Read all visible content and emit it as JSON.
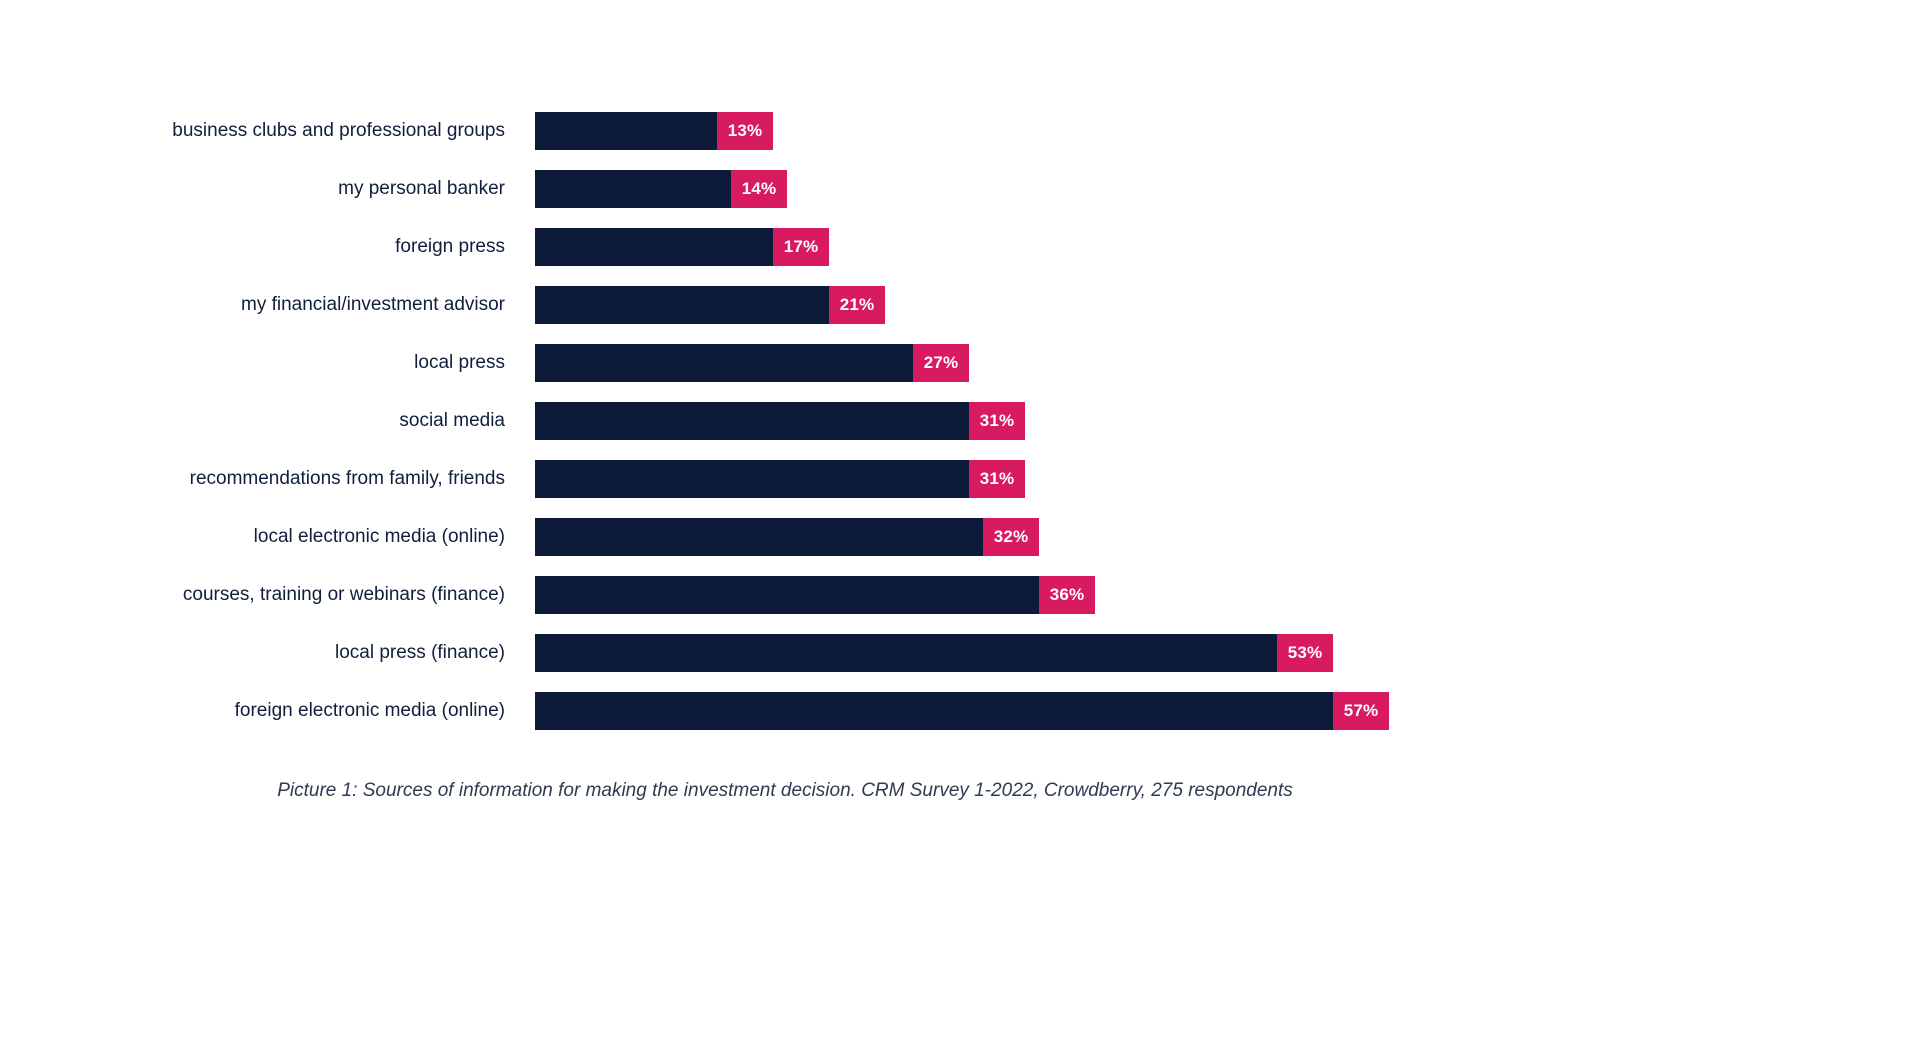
{
  "chart_data": {
    "type": "bar",
    "orientation": "horizontal",
    "title": "",
    "xlabel": "",
    "ylabel": "",
    "xlim": [
      0,
      60
    ],
    "grid": false,
    "legend": false,
    "value_suffix": "%",
    "bar_color": "#0d1a3a",
    "badge_color": "#d81b60",
    "label_color": "#101f3c",
    "categories": [
      "business clubs and professional groups",
      "my personal banker",
      "foreign press",
      "my financial/investment advisor",
      "local press",
      "social media",
      "recommendations from family, friends",
      "local electronic media (online)",
      "courses, training or webinars (finance)",
      "local press (finance)",
      "foreign electronic media (online)"
    ],
    "values": [
      13,
      14,
      17,
      21,
      27,
      31,
      31,
      32,
      36,
      53,
      57
    ],
    "caption": "Picture 1: Sources of information for making the investment decision. CRM Survey 1-2022, Crowdberry, 275 respondents"
  }
}
